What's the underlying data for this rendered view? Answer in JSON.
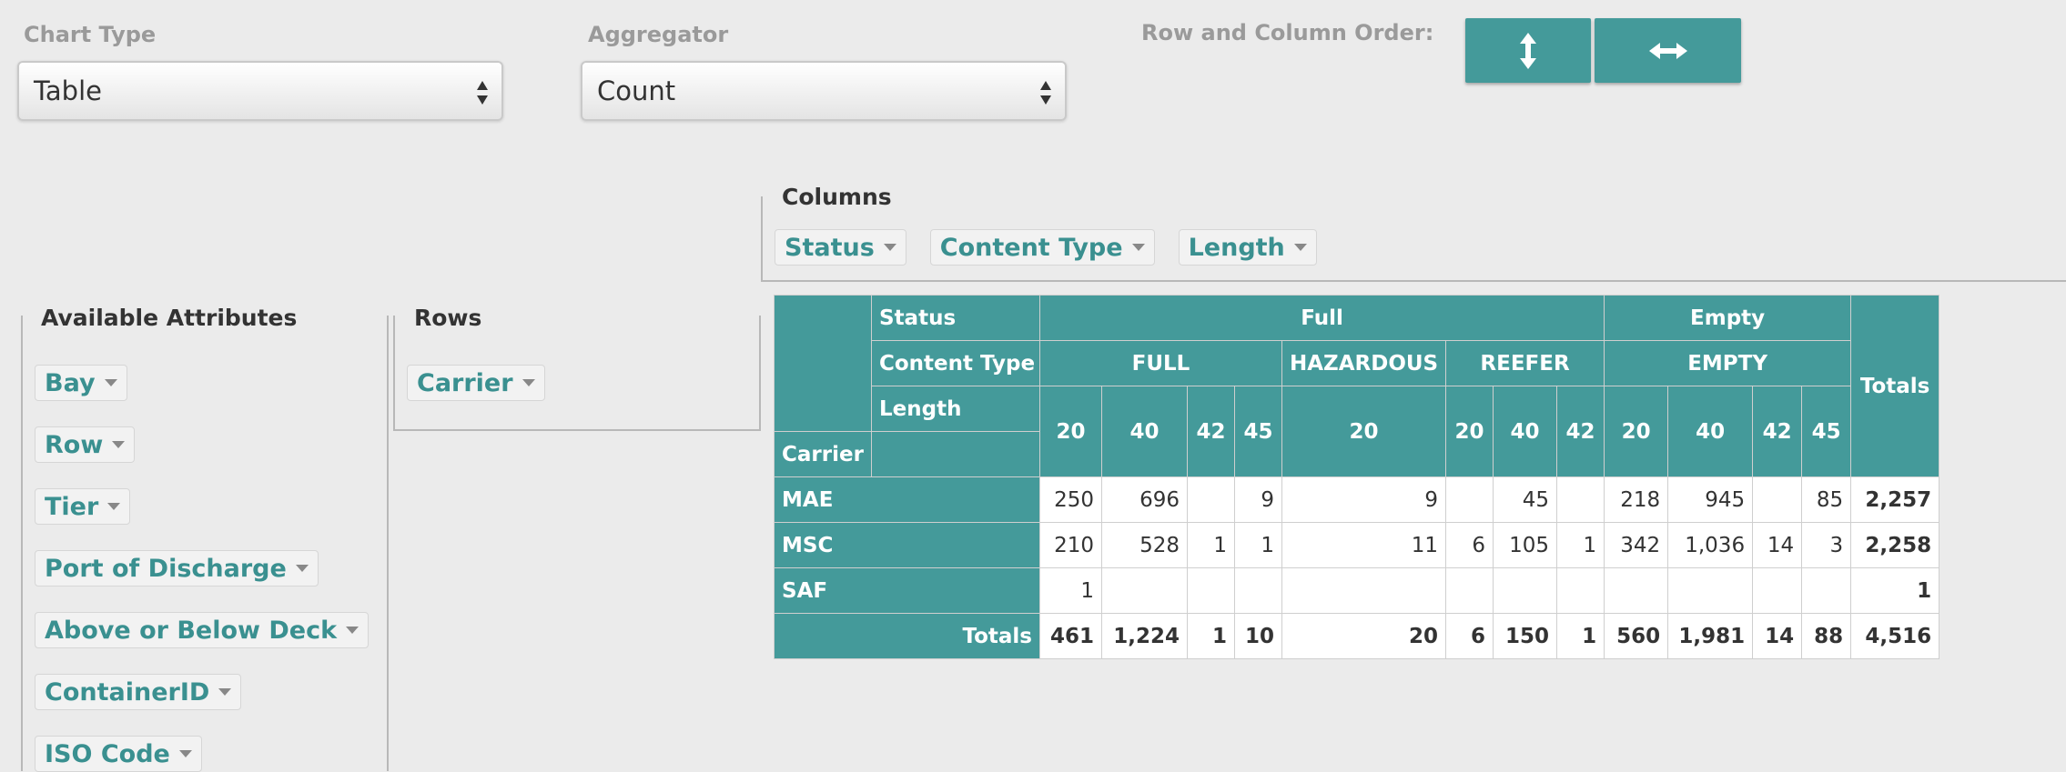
{
  "controls": {
    "chart_type": {
      "label": "Chart Type",
      "value": "Table"
    },
    "aggregator": {
      "label": "Aggregator",
      "value": "Count"
    },
    "order_label": "Row and Column Order:"
  },
  "available_attributes": {
    "title": "Available Attributes",
    "fields": [
      "Bay",
      "Row",
      "Tier",
      "Port of Discharge",
      "Above or Below Deck",
      "ContainerID",
      "ISO Code"
    ]
  },
  "rows_area": {
    "title": "Rows",
    "fields": [
      "Carrier"
    ]
  },
  "columns_area": {
    "title": "Columns",
    "fields": [
      "Status",
      "Content Type",
      "Length"
    ]
  },
  "table": {
    "headers": {
      "status": "Status",
      "content_type": "Content Type",
      "length": "Length",
      "carrier": "Carrier"
    },
    "totals_label": "Totals",
    "column_tree": [
      {
        "status": "Full",
        "content_types": [
          {
            "name": "FULL",
            "lengths": [
              "20",
              "40",
              "42",
              "45"
            ]
          },
          {
            "name": "HAZARDOUS",
            "lengths": [
              "20"
            ]
          },
          {
            "name": "REEFER",
            "lengths": [
              "20",
              "40",
              "42"
            ]
          }
        ]
      },
      {
        "status": "Empty",
        "content_types": [
          {
            "name": "EMPTY",
            "lengths": [
              "20",
              "40",
              "42",
              "45"
            ]
          }
        ]
      }
    ],
    "rows": [
      {
        "label": "MAE",
        "cells": [
          "250",
          "696",
          null,
          "9",
          "9",
          null,
          "45",
          null,
          "218",
          "945",
          null,
          "85"
        ],
        "total": "2,257"
      },
      {
        "label": "MSC",
        "cells": [
          "210",
          "528",
          "1",
          "1",
          "11",
          "6",
          "105",
          "1",
          "342",
          "1,036",
          "14",
          "3"
        ],
        "total": "2,258"
      },
      {
        "label": "SAF",
        "cells": [
          "1",
          null,
          null,
          null,
          null,
          null,
          null,
          null,
          null,
          null,
          null,
          null
        ],
        "total": "1"
      }
    ],
    "column_totals": [
      "461",
      "1,224",
      "1",
      "10",
      "20",
      "6",
      "150",
      "1",
      "560",
      "1,981",
      "14",
      "88"
    ],
    "grand_total": "4,516"
  }
}
